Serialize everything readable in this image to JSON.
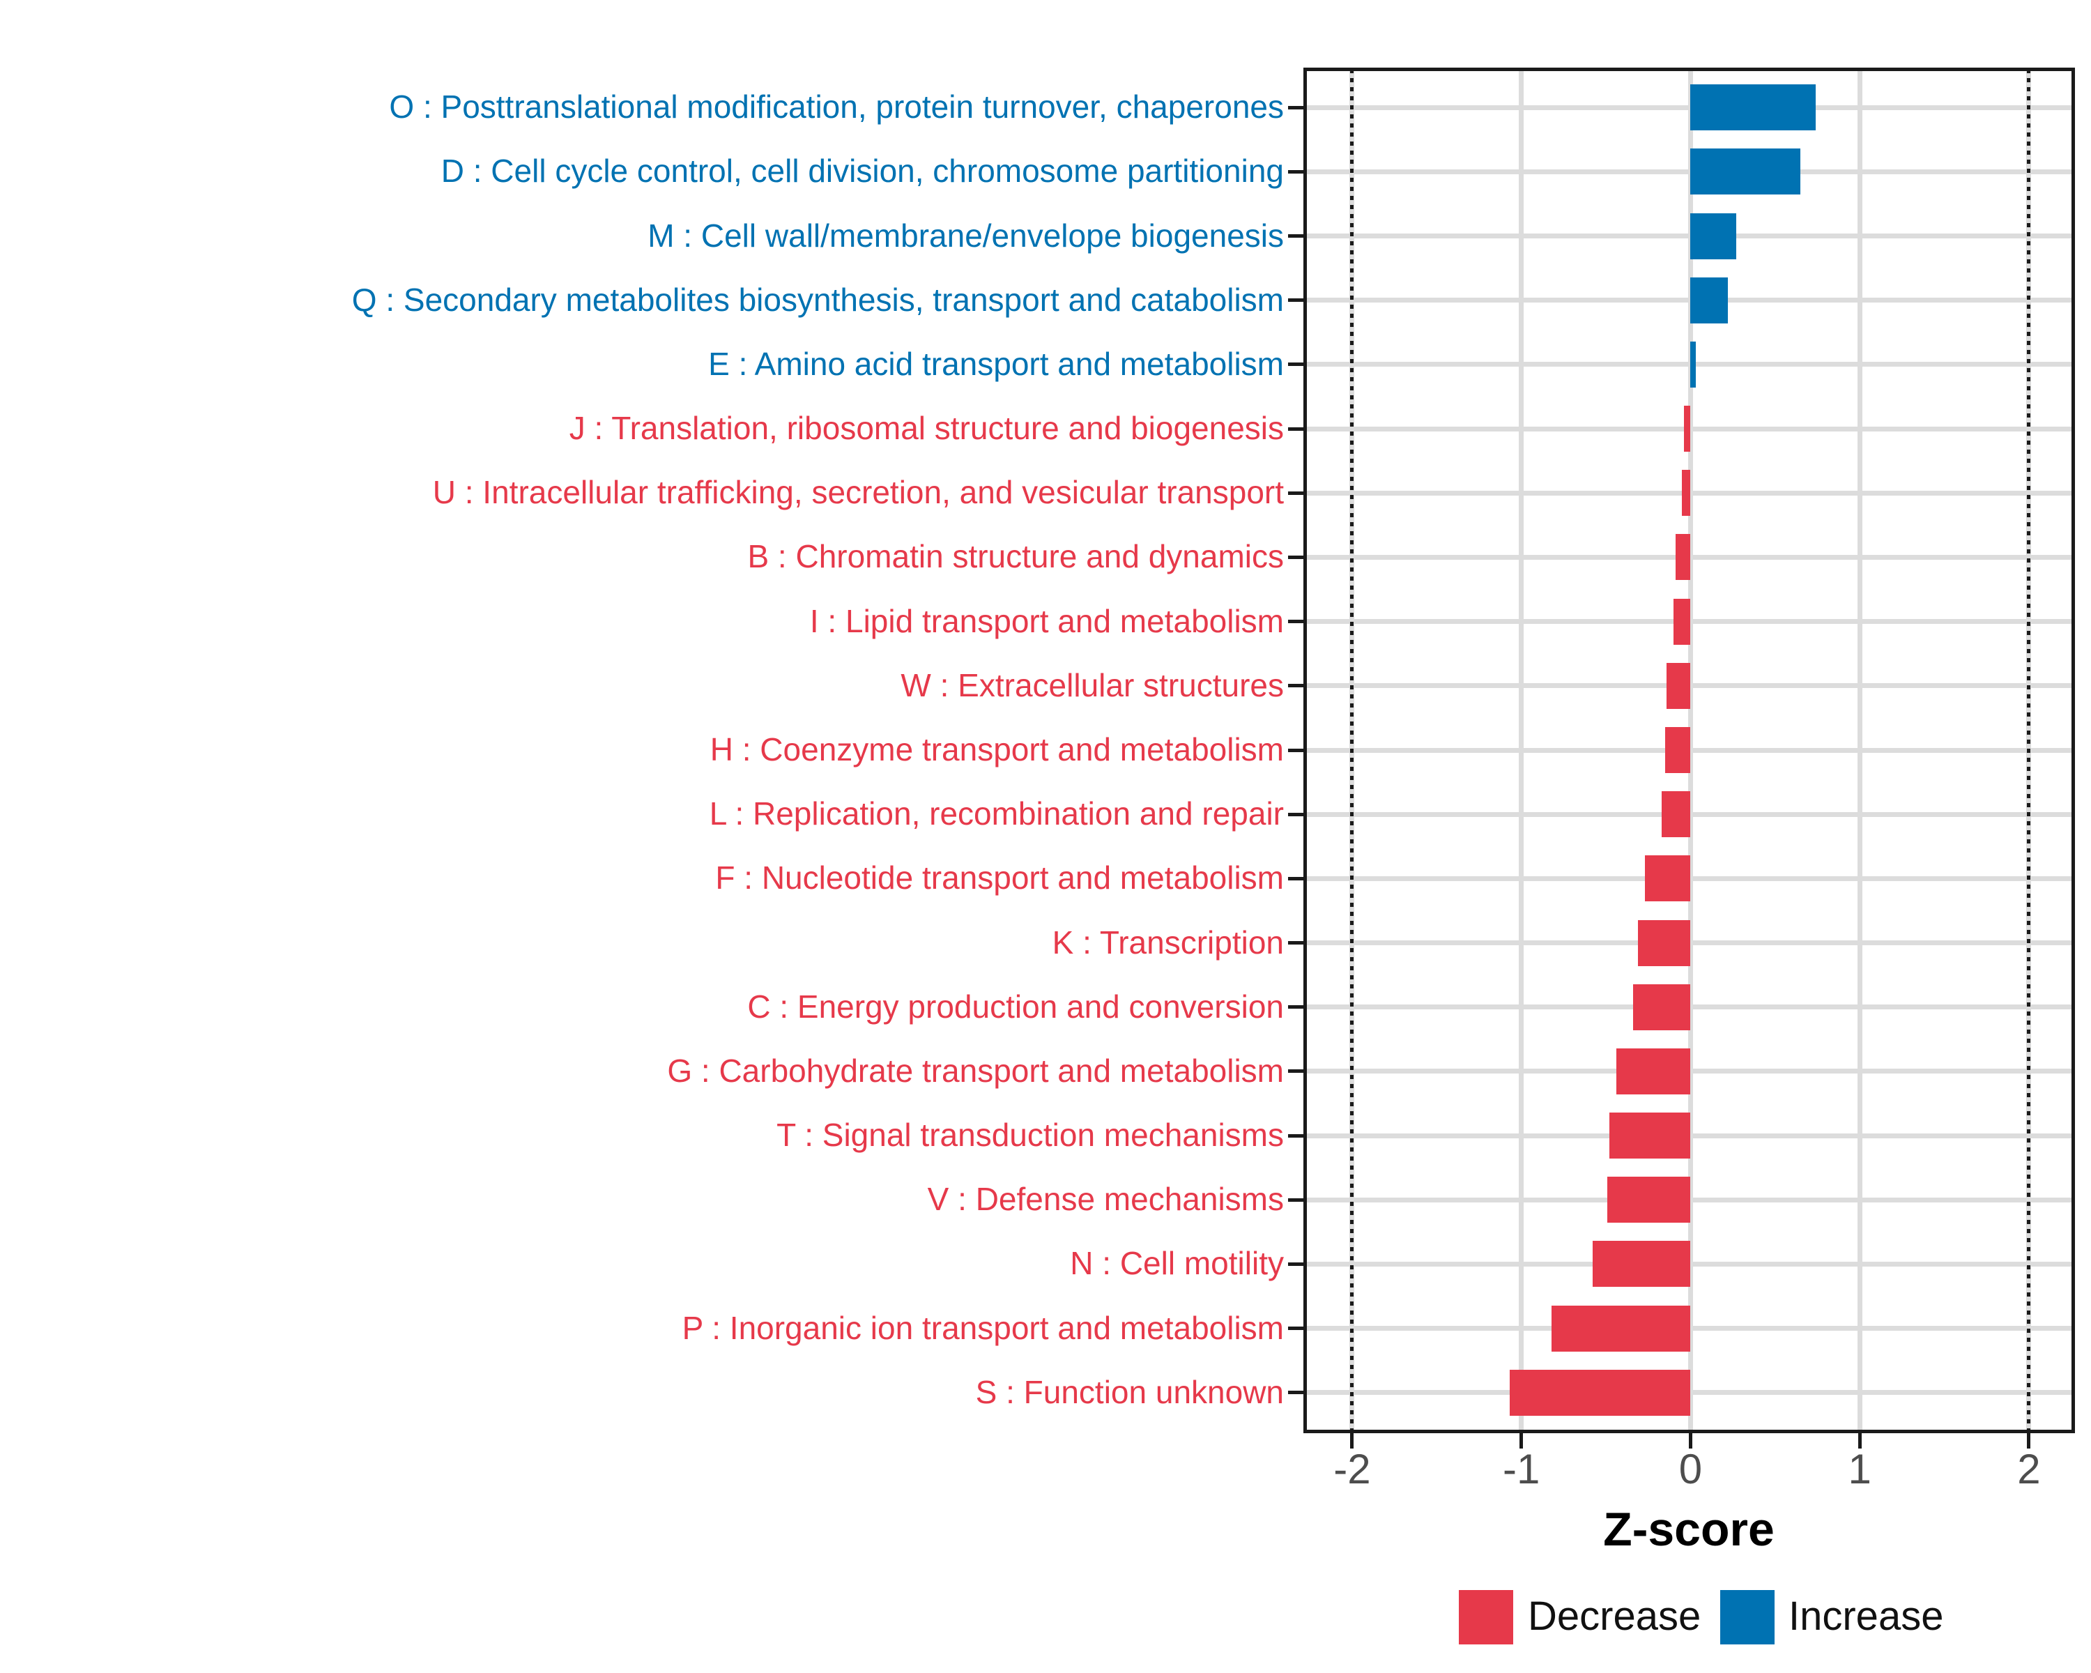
{
  "chart_data": {
    "type": "bar",
    "orientation": "horizontal",
    "title": "",
    "xlabel": "Z-score",
    "ylabel": "",
    "xlim": [
      -2.28,
      2.26
    ],
    "xticks": [
      -2,
      -1,
      0,
      1,
      2
    ],
    "xtick_labels": [
      "-2",
      "-1",
      "0",
      "1",
      "2"
    ],
    "reference_lines": [
      -2,
      2
    ],
    "grid": true,
    "legend_position": "bottom",
    "categories": [
      {
        "code": "O",
        "label": "O : Posttranslational modification, protein turnover, chaperones",
        "value": 0.74,
        "direction": "increase"
      },
      {
        "code": "D",
        "label": "D : Cell cycle control, cell division, chromosome partitioning",
        "value": 0.65,
        "direction": "increase"
      },
      {
        "code": "M",
        "label": "M : Cell wall/membrane/envelope biogenesis",
        "value": 0.27,
        "direction": "increase"
      },
      {
        "code": "Q",
        "label": "Q : Secondary metabolites biosynthesis, transport and catabolism",
        "value": 0.22,
        "direction": "increase"
      },
      {
        "code": "E",
        "label": "E : Amino acid transport and metabolism",
        "value": 0.03,
        "direction": "increase"
      },
      {
        "code": "J",
        "label": "J : Translation, ribosomal structure and biogenesis",
        "value": -0.04,
        "direction": "decrease"
      },
      {
        "code": "U",
        "label": "U : Intracellular trafficking, secretion, and vesicular transport",
        "value": -0.05,
        "direction": "decrease"
      },
      {
        "code": "B",
        "label": "B : Chromatin structure and dynamics",
        "value": -0.09,
        "direction": "decrease"
      },
      {
        "code": "I",
        "label": "I : Lipid transport and metabolism",
        "value": -0.1,
        "direction": "decrease"
      },
      {
        "code": "W",
        "label": "W : Extracellular structures",
        "value": -0.14,
        "direction": "decrease"
      },
      {
        "code": "H",
        "label": "H : Coenzyme transport and metabolism",
        "value": -0.15,
        "direction": "decrease"
      },
      {
        "code": "L",
        "label": "L : Replication, recombination and repair",
        "value": -0.17,
        "direction": "decrease"
      },
      {
        "code": "F",
        "label": "F : Nucleotide transport and metabolism",
        "value": -0.27,
        "direction": "decrease"
      },
      {
        "code": "K",
        "label": "K : Transcription",
        "value": -0.31,
        "direction": "decrease"
      },
      {
        "code": "C",
        "label": "C : Energy production and conversion",
        "value": -0.34,
        "direction": "decrease"
      },
      {
        "code": "G",
        "label": "G : Carbohydrate transport and metabolism",
        "value": -0.44,
        "direction": "decrease"
      },
      {
        "code": "T",
        "label": "T : Signal transduction mechanisms",
        "value": -0.48,
        "direction": "decrease"
      },
      {
        "code": "V",
        "label": "V : Defense mechanisms",
        "value": -0.49,
        "direction": "decrease"
      },
      {
        "code": "N",
        "label": "N : Cell motility",
        "value": -0.58,
        "direction": "decrease"
      },
      {
        "code": "P",
        "label": "P : Inorganic ion transport and metabolism",
        "value": -0.82,
        "direction": "decrease"
      },
      {
        "code": "S",
        "label": "S : Function unknown",
        "value": -1.07,
        "direction": "decrease"
      }
    ],
    "legend": {
      "items": [
        {
          "label": "Decrease",
          "direction": "decrease",
          "color": "#E6394A"
        },
        {
          "label": "Increase",
          "direction": "increase",
          "color": "#0072B2"
        }
      ]
    },
    "colors": {
      "increase": "#0072B2",
      "decrease": "#E6394A",
      "grid": "#DCDCDC",
      "axis_text": "#4D4D4D",
      "panel_border": "#1A1A1A",
      "reference_line": "#1A1A1A",
      "background": "#FFFFFF"
    }
  }
}
